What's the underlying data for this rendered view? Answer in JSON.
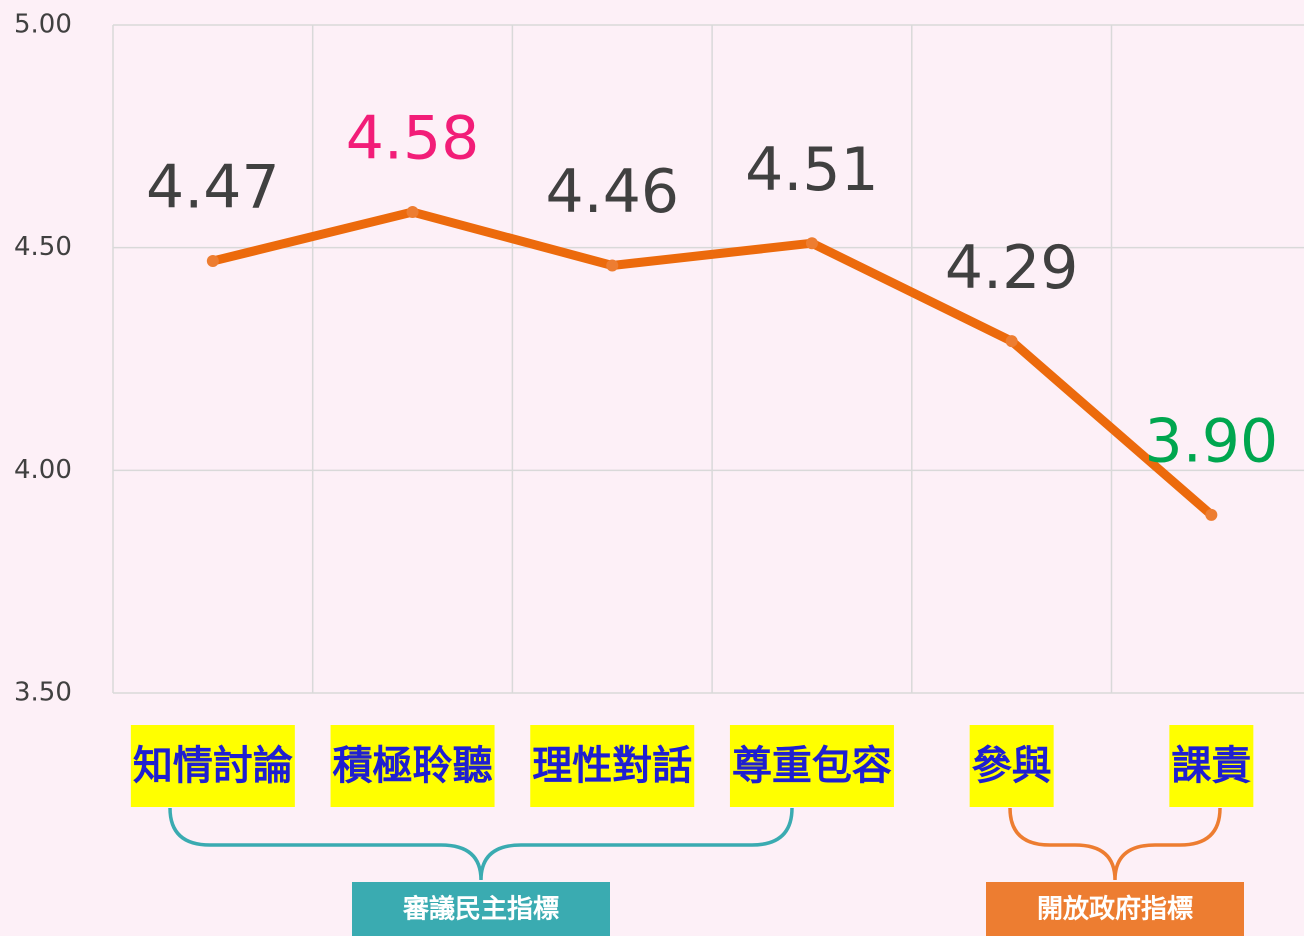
{
  "chart_data": {
    "type": "line",
    "categories": [
      "知情討論",
      "積極聆聽",
      "理性對話",
      "尊重包容",
      "參與",
      "課責"
    ],
    "values": [
      4.47,
      4.58,
      4.46,
      4.51,
      4.29,
      3.9
    ],
    "value_labels": [
      "4.47",
      "4.58",
      "4.46",
      "4.51",
      "4.29",
      "3.90"
    ],
    "value_label_colors": [
      "#404040",
      "#f21d78",
      "#404040",
      "#404040",
      "#404040",
      "#00a64f"
    ],
    "color": "#ec6a0c",
    "marker_color": "#ed7d31",
    "ylim": [
      3.5,
      5.0
    ],
    "yticks": [
      {
        "value": 3.5,
        "label": "3.50"
      },
      {
        "value": 4.0,
        "label": "4.00"
      },
      {
        "value": 4.5,
        "label": "4.50"
      },
      {
        "value": 5.0,
        "label": "5.00"
      }
    ],
    "grid": true,
    "groups": [
      {
        "label": "審議民主指標",
        "color": "#3aabb1"
      },
      {
        "label": "開放政府指標",
        "color": "#ed7d31"
      }
    ]
  }
}
